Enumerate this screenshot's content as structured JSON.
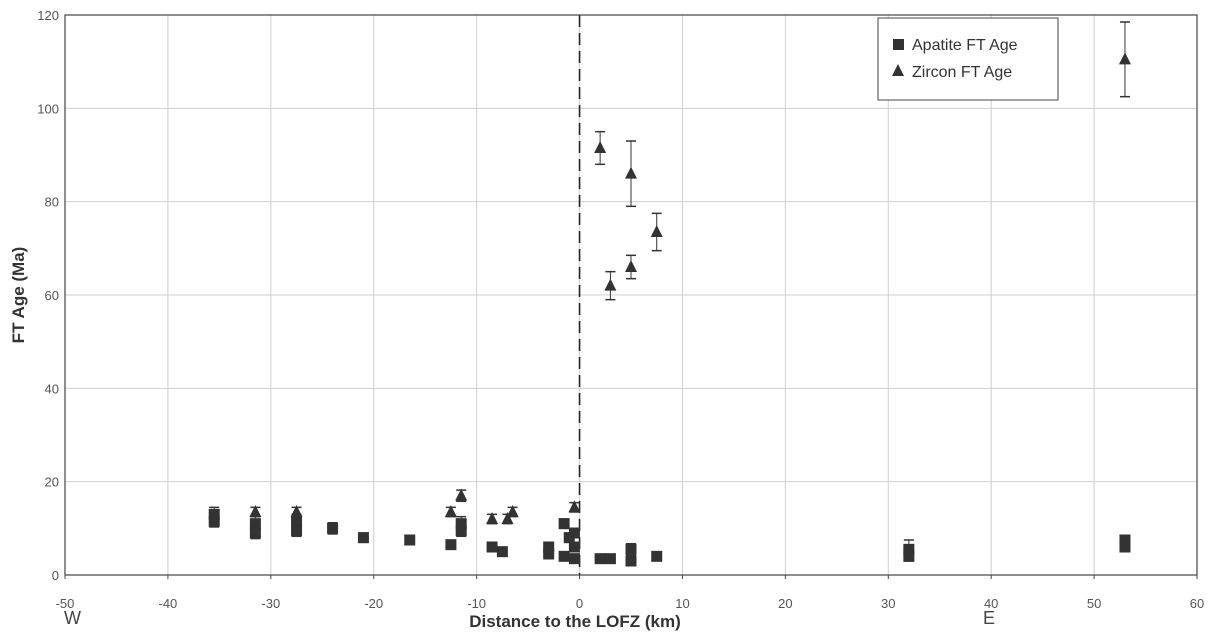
{
  "chart_data": {
    "type": "scatter",
    "xlabel": "Distance to the LOFZ (km)",
    "ylabel": "FT Age (Ma)",
    "xlim": [
      -50,
      60
    ],
    "ylim": [
      0,
      120
    ],
    "xticks": [
      -50,
      -40,
      -30,
      -20,
      -10,
      0,
      10,
      20,
      30,
      40,
      50,
      60
    ],
    "yticks": [
      0,
      20,
      40,
      60,
      80,
      100,
      120
    ],
    "grid": true,
    "direction_labels": {
      "west": "W",
      "east": "E"
    },
    "reference_line": {
      "x": 0,
      "style": "dashed"
    },
    "legend": {
      "placement": "top-right"
    },
    "series": [
      {
        "name": "Apatite FT Age",
        "marker": "square",
        "color": "#333333",
        "points": [
          {
            "x": -35.5,
            "y": 13.0,
            "err": 1.5
          },
          {
            "x": -35.5,
            "y": 11.5,
            "err": 1.2
          },
          {
            "x": -31.5,
            "y": 11.0,
            "err": 1.5
          },
          {
            "x": -31.5,
            "y": 9.0,
            "err": 1.2
          },
          {
            "x": -27.5,
            "y": 11.5,
            "err": 1.5
          },
          {
            "x": -27.5,
            "y": 9.5,
            "err": 1.2
          },
          {
            "x": -24.0,
            "y": 10.0,
            "err": 1.2
          },
          {
            "x": -21.0,
            "y": 8.0,
            "err": 1.0
          },
          {
            "x": -16.5,
            "y": 7.5,
            "err": 1.0
          },
          {
            "x": -12.5,
            "y": 6.5,
            "err": 0.8
          },
          {
            "x": -11.5,
            "y": 11.0,
            "err": 1.5
          },
          {
            "x": -11.5,
            "y": 9.5,
            "err": 1.2
          },
          {
            "x": -8.5,
            "y": 6.0,
            "err": 0.8
          },
          {
            "x": -7.5,
            "y": 5.0,
            "err": 0.8
          },
          {
            "x": -3.0,
            "y": 6.0,
            "err": 1.0
          },
          {
            "x": -3.0,
            "y": 4.5,
            "err": 0.8
          },
          {
            "x": -1.5,
            "y": 11.0,
            "err": 1.0
          },
          {
            "x": -1.5,
            "y": 4.0,
            "err": 0.8
          },
          {
            "x": -1.0,
            "y": 8.0,
            "err": 1.0
          },
          {
            "x": -0.5,
            "y": 9.0,
            "err": 1.0
          },
          {
            "x": -0.5,
            "y": 6.0,
            "err": 1.0
          },
          {
            "x": -0.5,
            "y": 3.5,
            "err": 0.8
          },
          {
            "x": 2.0,
            "y": 3.5,
            "err": 0.6
          },
          {
            "x": 3.0,
            "y": 3.5,
            "err": 0.6
          },
          {
            "x": 5.0,
            "y": 5.5,
            "err": 1.2
          },
          {
            "x": 5.0,
            "y": 3.0,
            "err": 1.0
          },
          {
            "x": 7.5,
            "y": 4.0,
            "err": 0.6
          },
          {
            "x": 32.0,
            "y": 5.5,
            "err": 2.0
          },
          {
            "x": 32.0,
            "y": 4.0,
            "err": 1.0
          },
          {
            "x": 53.0,
            "y": 7.5,
            "err": 1.0
          },
          {
            "x": 53.0,
            "y": 6.0,
            "err": 1.0
          }
        ]
      },
      {
        "name": "Zircon FT Age",
        "marker": "triangle",
        "color": "#333333",
        "points": [
          {
            "x": -31.5,
            "y": 13.5,
            "err": 1.0
          },
          {
            "x": -27.5,
            "y": 13.5,
            "err": 1.0
          },
          {
            "x": -12.5,
            "y": 13.5,
            "err": 1.0
          },
          {
            "x": -11.5,
            "y": 17.0,
            "err": 1.2
          },
          {
            "x": -8.5,
            "y": 12.0,
            "err": 1.0
          },
          {
            "x": -7.0,
            "y": 12.0,
            "err": 1.0
          },
          {
            "x": -6.5,
            "y": 13.5,
            "err": 1.0
          },
          {
            "x": -0.5,
            "y": 14.5,
            "err": 1.0
          },
          {
            "x": 2.0,
            "y": 91.5,
            "err": 3.5
          },
          {
            "x": 3.0,
            "y": 62.0,
            "err": 3.0
          },
          {
            "x": 5.0,
            "y": 86.0,
            "err": 7.0
          },
          {
            "x": 5.0,
            "y": 66.0,
            "err": 2.5
          },
          {
            "x": 7.5,
            "y": 73.5,
            "err": 4.0
          },
          {
            "x": 53.0,
            "y": 110.5,
            "err": 8.0
          }
        ]
      }
    ]
  }
}
